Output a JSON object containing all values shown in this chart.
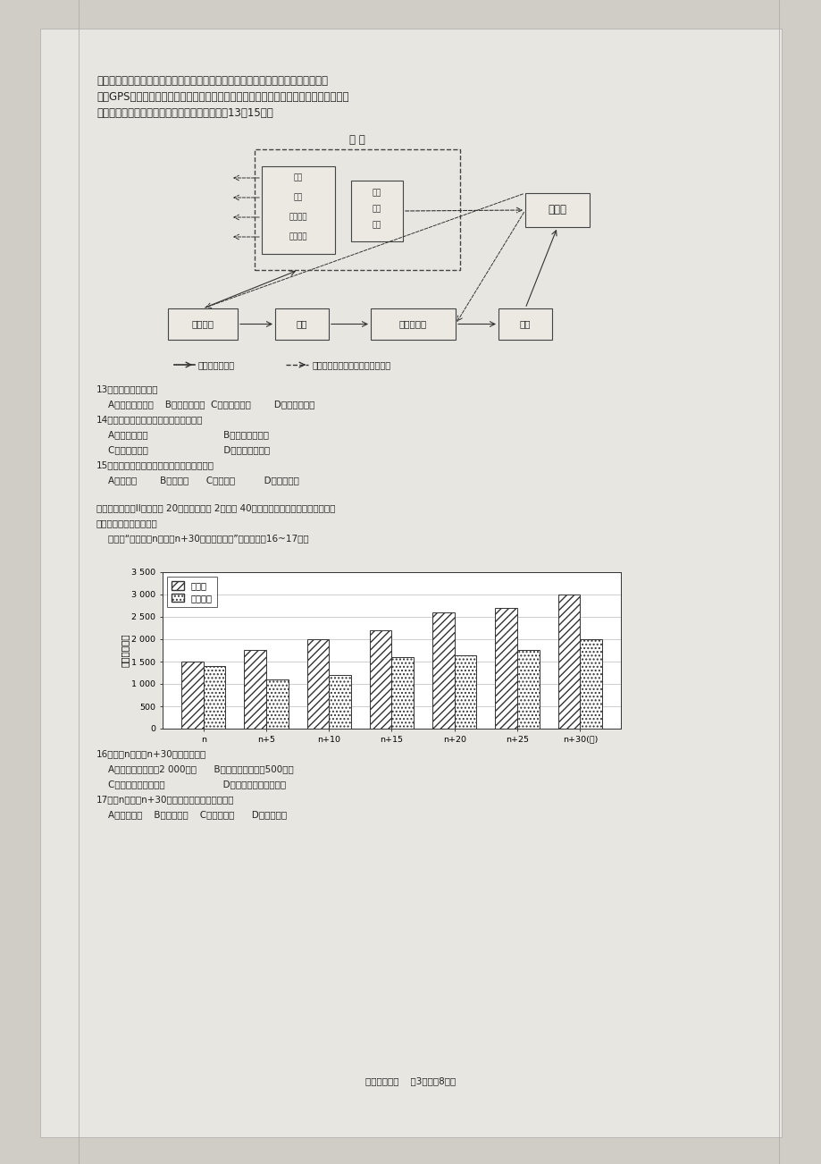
{
  "page_bg": "#d0ccc6",
  "paper_bg": "#e8e6e0",
  "para1": "上海的王先生登录了总部位于北京的某交通导航设备公司网站，为自己的爱车订购了",
  "para2": "一套GPS导航设备，两天后在家收到了货。下图为该公司基于互联网条件下的生产组织、",
  "para3": "经营网络与传统商业流通的示意图。据此完成第13～15题。",
  "q13": "13．图中生产企业属于",
  "q13_opts": "    A．劳动力指向型    B．技术指向型  C．原料指向型        D．市场指向型",
  "q14": "14．图中显示该公司产品销售主要是依靠",
  "q14_a": "    A．乡村零售店                          B．大型便民超市",
  "q14_b": "    C．代理销售商                          D．信息交流平台",
  "q15": "15．与传统商业流通相比，网购的优点不包括",
  "q15_opts": "    A．效率高        B．成本低      C．风险小          D．结算简便",
  "sec2_header": "二、单项选择题II：本大题 20小题，每小题 2分，共 40分。在每小题给出的四个选项中，",
  "sec2_sub": "只有一项符合题目要求。",
  "sec2_intro": "    下图是“某地区第n年到第n+30年人口增长图”，读图回筄16~17题。",
  "ylabel": "人口（万人）",
  "xtick_labels": [
    "n",
    "n+5",
    "n+10",
    "n+15",
    "n+20",
    "n+25",
    "n+30(年)"
  ],
  "ytick_labels": [
    "0",
    "500",
    "1 000",
    "1 500",
    "2 000",
    "2 500",
    "3 000",
    "3 500"
  ],
  "ytick_values": [
    0,
    500,
    1000,
    1500,
    2000,
    2500,
    3000,
    3500
  ],
  "total_pop": [
    1500,
    1750,
    2000,
    2200,
    2600,
    2700,
    3000
  ],
  "rural_pop": [
    1400,
    1100,
    1200,
    1600,
    1650,
    1750,
    2000
  ],
  "legend_total": "总人口",
  "legend_rural": "乡村人口",
  "q16": "16．从第n年到第n+30年间，该地区",
  "q16_a": "    A．乡村人口增加了2 000万人      B．城市人口增加了500万人",
  "q16_b": "    C．总人口增长了两倍                    D．乡村人口增长了两倍",
  "q17": "17．第n年和第n+30年相比，该地区城市化水平",
  "q17_opts": "    A．大幅提高    B．略有提高    C．没有变化      D．略有下降",
  "footer": "高一理科地理    第3页（兲8页）"
}
